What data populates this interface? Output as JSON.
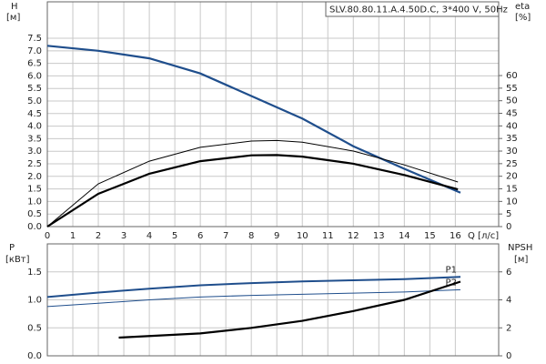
{
  "chart_data": [
    {
      "type": "line",
      "title": "SLV.80.80.11.A.4.50D.C, 3*400 V, 50Hz",
      "y_label": "H",
      "y_unit": "[м]",
      "y2_label": "eta",
      "y2_unit": "[%]",
      "x_label": "Q [л/с]",
      "xlim": [
        0,
        17.7
      ],
      "xticks": [
        0,
        1,
        2,
        3,
        4,
        5,
        6,
        7,
        8,
        9,
        10,
        11,
        12,
        13,
        14,
        15,
        16
      ],
      "ylim": [
        0,
        8.95
      ],
      "yticks": [
        {
          "value": 0,
          "label": "0.0"
        },
        0.5,
        {
          "value": 1,
          "label": "1.0"
        },
        1.5,
        {
          "value": 2,
          "label": "2.0"
        },
        2.5,
        {
          "value": 3,
          "label": "3.0"
        },
        3.5,
        {
          "value": 4,
          "label": "4.0"
        },
        4.5,
        {
          "value": 5,
          "label": "5.0"
        },
        5.5,
        {
          "value": 6,
          "label": "6.0"
        },
        6.5,
        {
          "value": 7,
          "label": "7.0"
        },
        7.5
      ],
      "y2lim": [
        0,
        89.3
      ],
      "y2ticks": [
        0,
        5,
        10,
        15,
        20,
        25,
        30,
        35,
        40,
        45,
        50,
        55,
        60
      ],
      "grid": true,
      "series": [
        {
          "color": "#1f4e8c",
          "width": 2.2,
          "x": [
            0,
            2,
            4,
            6,
            8,
            10,
            12,
            14,
            16.2
          ],
          "values": [
            7.2,
            7.0,
            6.7,
            6.1,
            5.2,
            4.3,
            3.2,
            2.3,
            1.35
          ]
        },
        {
          "color": "#000000",
          "width": 1,
          "axis": "y2",
          "x": [
            0,
            2,
            4,
            6,
            8,
            9,
            10,
            12,
            14,
            16.1
          ],
          "values": [
            0,
            17,
            26,
            31.5,
            34,
            34.2,
            33.5,
            30,
            24.5,
            17.7
          ]
        },
        {
          "color": "#000000",
          "width": 2.2,
          "axis": "y2",
          "x": [
            0,
            2,
            4,
            6,
            8,
            9,
            10,
            12,
            14,
            16.1
          ],
          "values": [
            0,
            13,
            21,
            26,
            28.3,
            28.4,
            27.8,
            25,
            20.5,
            14.8
          ]
        }
      ]
    },
    {
      "type": "line",
      "y_label": "P",
      "y_unit": "[кВт]",
      "y2_label": "NPSH",
      "y2_unit": "[м]",
      "xlim": [
        0,
        17.7
      ],
      "xticks": [
        0,
        1,
        2,
        3,
        4,
        5,
        6,
        7,
        8,
        9,
        10,
        11,
        12,
        13,
        14,
        15,
        16
      ],
      "ylim": [
        0,
        2.0
      ],
      "yticks": [
        {
          "value": 0,
          "label": "0.0"
        },
        0.5,
        {
          "value": 1,
          "label": "1.0"
        },
        1.5
      ],
      "y2lim": [
        0,
        8
      ],
      "y2ticks": [
        0,
        2,
        4,
        6
      ],
      "grid": true,
      "series": [
        {
          "name": "P1",
          "color": "#1f4e8c",
          "width": 2,
          "x": [
            0,
            2,
            4,
            6,
            8,
            10,
            12,
            14,
            16.2
          ],
          "values": [
            1.05,
            1.13,
            1.2,
            1.26,
            1.3,
            1.33,
            1.35,
            1.37,
            1.41
          ]
        },
        {
          "name": "P2",
          "color": "#1f4e8c",
          "width": 1,
          "x": [
            0,
            2,
            4,
            6,
            8,
            10,
            12,
            14,
            16.2
          ],
          "values": [
            0.88,
            0.94,
            1.0,
            1.05,
            1.08,
            1.1,
            1.12,
            1.14,
            1.18
          ]
        },
        {
          "color": "#000000",
          "width": 2.2,
          "axis": "y2",
          "x": [
            2.8,
            6,
            8,
            10,
            12,
            14,
            16.2
          ],
          "values": [
            1.3,
            1.6,
            2.0,
            2.5,
            3.2,
            4.0,
            5.3
          ]
        }
      ]
    }
  ]
}
